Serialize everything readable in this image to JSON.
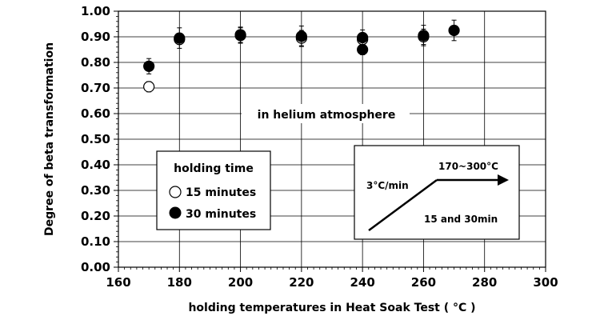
{
  "chart_data": {
    "type": "scatter",
    "title": "",
    "xlabel": "holding temperatures in Heat Soak Test ( °C )",
    "ylabel": "Degree of beta transformation",
    "xlim": [
      160,
      300
    ],
    "ylim": [
      0.0,
      1.0
    ],
    "x_ticks": [
      160,
      180,
      200,
      220,
      240,
      260,
      280,
      300
    ],
    "x_tick_labels": [
      "160",
      "180",
      "200",
      "220",
      "240",
      "260",
      "280",
      "300"
    ],
    "y_ticks": [
      0.0,
      0.1,
      0.2,
      0.3,
      0.4,
      0.5,
      0.6,
      0.7,
      0.8,
      0.9,
      1.0
    ],
    "y_tick_labels": [
      "0.00",
      "0.10",
      "0.20",
      "0.30",
      "0.40",
      "0.50",
      "0.60",
      "0.70",
      "0.80",
      "0.90",
      "1.00"
    ],
    "grid": true,
    "legend": {
      "title": "holding time",
      "placement": "lower-left",
      "entries": [
        "15 minutes",
        "30 minutes"
      ]
    },
    "series": [
      {
        "name": "15 minutes",
        "marker": "open-circle",
        "points": [
          {
            "x": 170,
            "y": 0.705,
            "err": 0.02
          },
          {
            "x": 180,
            "y": 0.89,
            "err": 0.02
          },
          {
            "x": 200,
            "y": 0.905,
            "err": 0.03
          },
          {
            "x": 220,
            "y": 0.895,
            "err": 0.03
          },
          {
            "x": 240,
            "y": 0.89,
            "err": 0.02
          },
          {
            "x": 260,
            "y": 0.9,
            "err": 0.03
          }
        ]
      },
      {
        "name": "30 minutes",
        "marker": "filled-circle",
        "points": [
          {
            "x": 170,
            "y": 0.785,
            "err": 0.03
          },
          {
            "x": 180,
            "y": 0.895,
            "err": 0.04
          },
          {
            "x": 200,
            "y": 0.908,
            "err": 0.03
          },
          {
            "x": 220,
            "y": 0.902,
            "err": 0.04
          },
          {
            "x": 240,
            "y": 0.897,
            "err": 0.03
          },
          {
            "x": 240,
            "y": 0.85,
            "err": 0.02
          },
          {
            "x": 260,
            "y": 0.905,
            "err": 0.04
          },
          {
            "x": 270,
            "y": 0.925,
            "err": 0.04
          }
        ]
      }
    ],
    "annotations": {
      "atmosphere": "in helium atmosphere"
    },
    "inset": {
      "rate_label": "3°C/min",
      "temp_label": "170~300°C",
      "time_label": "15 and 30min"
    }
  }
}
